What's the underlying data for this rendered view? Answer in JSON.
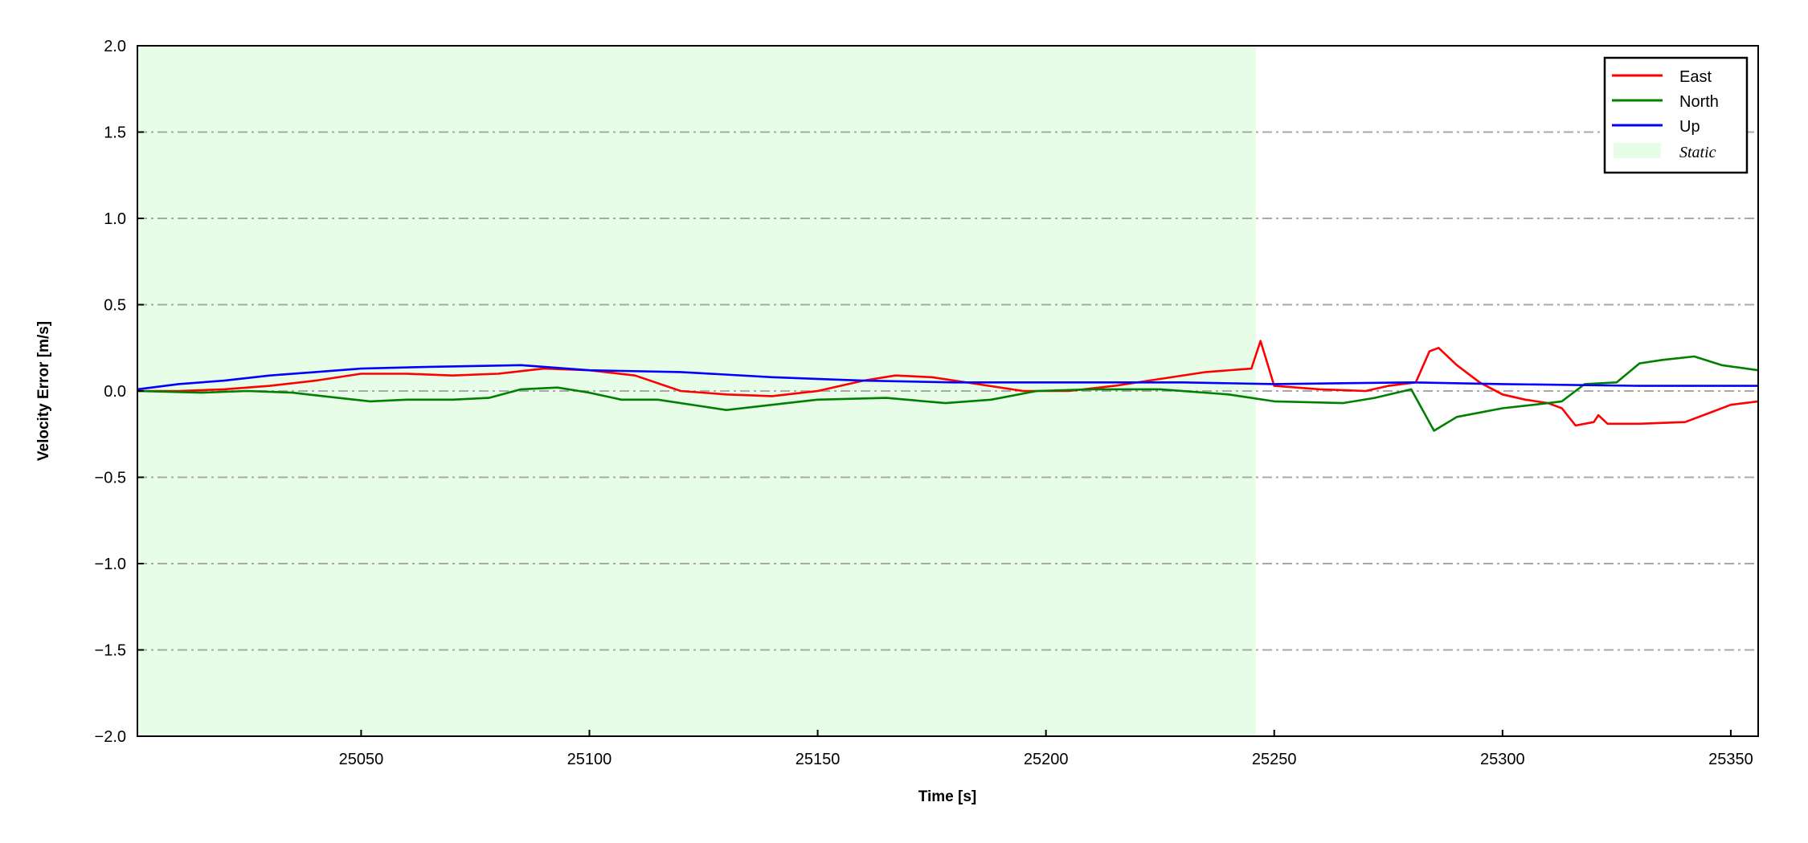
{
  "chart_data": {
    "type": "line",
    "xlabel": "Time [s]",
    "ylabel": "Velocity Error [m/s]",
    "xlim": [
      25001,
      25356
    ],
    "ylim": [
      -2.0,
      2.0
    ],
    "xticks": [
      25050,
      25100,
      25150,
      25200,
      25250,
      25300,
      25350
    ],
    "xtick_labels": [
      "25050",
      "25100",
      "25150",
      "25200",
      "25250",
      "25300",
      "25350"
    ],
    "yticks": [
      -2.0,
      -1.5,
      -1.0,
      -0.5,
      0.0,
      0.5,
      1.0,
      1.5,
      2.0
    ],
    "ytick_labels": [
      "−2.0",
      "−1.5",
      "−1.0",
      "−0.5",
      "0.0",
      "0.5",
      "1.0",
      "1.5",
      "2.0"
    ],
    "grid": "horizontal dash-dot",
    "legend_position": "top-right",
    "shaded_region": {
      "name": "Static",
      "x": [
        25001,
        25246
      ],
      "color": "#e8fde8"
    },
    "series": [
      {
        "name": "East",
        "color": "#ff0000",
        "x": [
          25001,
          25010,
          25020,
          25030,
          25040,
          25050,
          25060,
          25070,
          25080,
          25090,
          25100,
          25110,
          25120,
          25130,
          25140,
          25150,
          25160,
          25167,
          25175,
          25185,
          25195,
          25205,
          25215,
          25225,
          25235,
          25245,
          25247,
          25250,
          25260,
          25270,
          25275,
          25281,
          25284,
          25286,
          25290,
          25295,
          25300,
          25305,
          25310,
          25313,
          25316,
          25320,
          25321,
          25323,
          25330,
          25340,
          25345,
          25350,
          25356
        ],
        "y": [
          0,
          0,
          0.01,
          0.03,
          0.06,
          0.1,
          0.1,
          0.09,
          0.1,
          0.13,
          0.12,
          0.09,
          0.0,
          -0.02,
          -0.03,
          0,
          0.06,
          0.09,
          0.08,
          0.04,
          0,
          0,
          0.03,
          0.07,
          0.11,
          0.13,
          0.29,
          0.03,
          0.01,
          0,
          0.03,
          0.05,
          0.23,
          0.25,
          0.15,
          0.05,
          -0.02,
          -0.05,
          -0.07,
          -0.1,
          -0.2,
          -0.18,
          -0.14,
          -0.19,
          -0.19,
          -0.18,
          -0.13,
          -0.08,
          -0.06
        ]
      },
      {
        "name": "North",
        "color": "#008000",
        "x": [
          25001,
          25015,
          25025,
          25035,
          25045,
          25052,
          25060,
          25070,
          25078,
          25085,
          25093,
          25100,
          25107,
          25115,
          25125,
          25130,
          25140,
          25150,
          25165,
          25178,
          25188,
          25198,
          25210,
          25225,
          25240,
          25250,
          25265,
          25272,
          25280,
          25285,
          25290,
          25300,
          25310,
          25313,
          25318,
          25325,
          25330,
          25335,
          25342,
          25348,
          25356
        ],
        "y": [
          0,
          -0.01,
          0,
          -0.01,
          -0.04,
          -0.06,
          -0.05,
          -0.05,
          -0.04,
          0.01,
          0.02,
          -0.01,
          -0.05,
          -0.05,
          -0.09,
          -0.11,
          -0.08,
          -0.05,
          -0.04,
          -0.07,
          -0.05,
          0,
          0.01,
          0.01,
          -0.02,
          -0.06,
          -0.07,
          -0.04,
          0.01,
          -0.23,
          -0.15,
          -0.1,
          -0.07,
          -0.06,
          0.04,
          0.05,
          0.16,
          0.18,
          0.2,
          0.15,
          0.12
        ]
      },
      {
        "name": "Up",
        "color": "#0000ff",
        "x": [
          25001,
          25010,
          25020,
          25030,
          25040,
          25050,
          25065,
          25085,
          25100,
          25120,
          25140,
          25160,
          25180,
          25200,
          25230,
          25250,
          25280,
          25300,
          25330,
          25356
        ],
        "y": [
          0.01,
          0.04,
          0.06,
          0.09,
          0.11,
          0.13,
          0.14,
          0.15,
          0.12,
          0.11,
          0.08,
          0.06,
          0.05,
          0.05,
          0.05,
          0.04,
          0.05,
          0.04,
          0.03,
          0.03
        ]
      }
    ]
  }
}
